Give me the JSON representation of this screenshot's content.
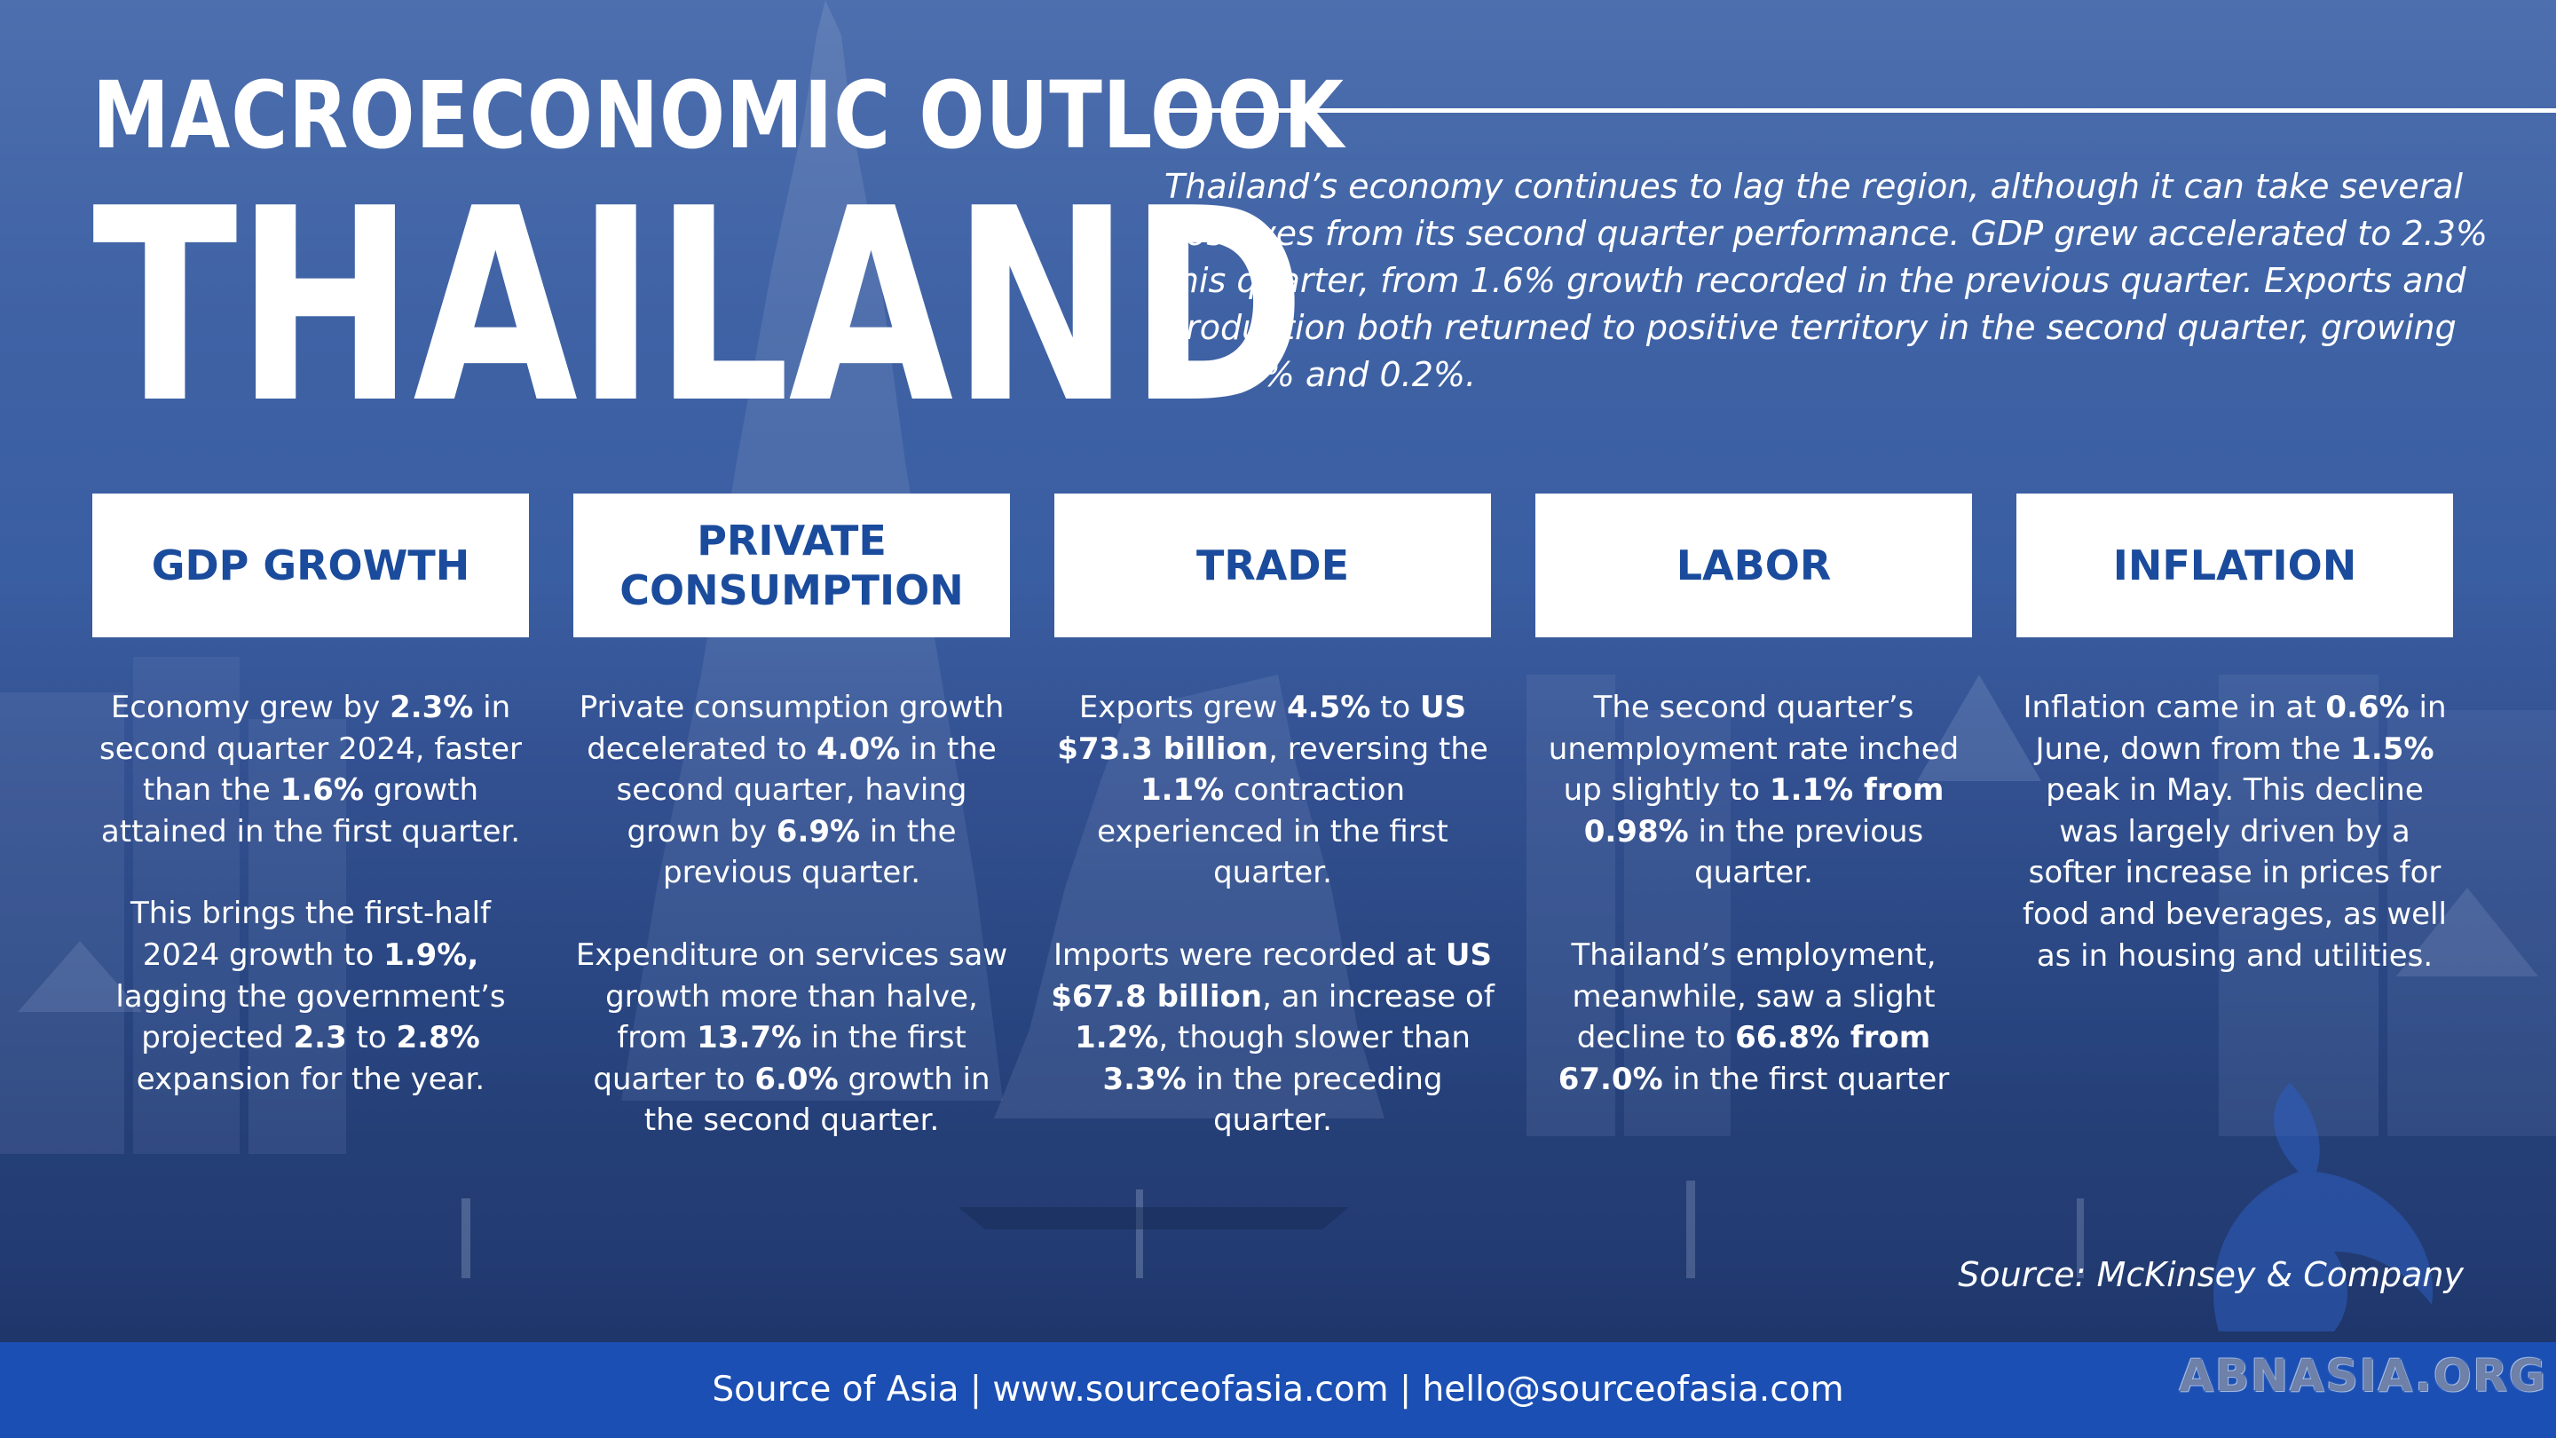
{
  "header": {
    "title_line1": "MACROECONOMIC OUTLOOK",
    "title_line2": "THAILAND",
    "intro": "Thailand’s economy continues to lag the region, although it can take several positives from its second quarter performance. GDP grew accelerated to 2.3% this quarter, from 1.6% growth recorded in the previous quarter. Exports and production both returned to positive territory in the second quarter, growing at 4.5% and 0.2%."
  },
  "categories": [
    {
      "label": "GDP GROWTH",
      "paragraphs": [
        [
          {
            "t": "Economy grew by "
          },
          {
            "t": "2.3%",
            "b": true
          },
          {
            "t": " in second quarter 2024, faster than the "
          },
          {
            "t": "1.6%",
            "b": true
          },
          {
            "t": " growth attained in the first quarter."
          }
        ],
        [
          {
            "t": "This brings the first-half 2024 growth to "
          },
          {
            "t": "1.9%,",
            "b": true
          },
          {
            "t": " lagging the government’s projected "
          },
          {
            "t": "2.3",
            "b": true
          },
          {
            "t": " to "
          },
          {
            "t": "2.8%",
            "b": true
          },
          {
            "t": " expansion for the year."
          }
        ]
      ]
    },
    {
      "label": "PRIVATE CONSUMPTION",
      "paragraphs": [
        [
          {
            "t": "Private consumption growth decelerated to "
          },
          {
            "t": "4.0%",
            "b": true
          },
          {
            "t": " in the second quarter, having grown by "
          },
          {
            "t": "6.9%",
            "b": true
          },
          {
            "t": " in the previous quarter."
          }
        ],
        [
          {
            "t": "Expenditure on services saw growth more than halve, from "
          },
          {
            "t": "13.7%",
            "b": true
          },
          {
            "t": " in the first quarter to "
          },
          {
            "t": "6.0%",
            "b": true
          },
          {
            "t": " growth in the second quarter."
          }
        ]
      ]
    },
    {
      "label": "TRADE",
      "paragraphs": [
        [
          {
            "t": "Exports grew "
          },
          {
            "t": "4.5%",
            "b": true
          },
          {
            "t": " to "
          },
          {
            "t": "US $73.3 billion",
            "b": true
          },
          {
            "t": ", reversing the "
          },
          {
            "t": "1.1%",
            "b": true
          },
          {
            "t": " contraction experienced in the first quarter."
          }
        ],
        [
          {
            "t": "Imports were recorded at "
          },
          {
            "t": "US $67.8 billion",
            "b": true
          },
          {
            "t": ", an increase of "
          },
          {
            "t": "1.2%",
            "b": true
          },
          {
            "t": ", though slower than "
          },
          {
            "t": "3.3%",
            "b": true
          },
          {
            "t": " in the preceding quarter."
          }
        ]
      ]
    },
    {
      "label": "LABOR",
      "paragraphs": [
        [
          {
            "t": "The second quarter’s unemployment rate inched up slightly to "
          },
          {
            "t": "1.1% from 0.98%",
            "b": true
          },
          {
            "t": " in the previous quarter."
          }
        ],
        [
          {
            "t": "Thailand’s employment, meanwhile, saw a slight decline to "
          },
          {
            "t": "66.8% from 67.0%",
            "b": true
          },
          {
            "t": " in the first quarter"
          }
        ]
      ]
    },
    {
      "label": "INFLATION",
      "paragraphs": [
        [
          {
            "t": "Inflation came in at "
          },
          {
            "t": "0.6%",
            "b": true
          },
          {
            "t": " in June, down from the "
          },
          {
            "t": "1.5%",
            "b": true
          },
          {
            "t": " peak in May. This decline was largely driven by a softer increase in prices for food and beverages, as well as in housing and utilities."
          }
        ]
      ]
    }
  ],
  "source_note": "Source: McKinsey & Company",
  "footer": {
    "text": "Source of Asia | www.sourceofasia.com | hello@sourceofasia.com"
  },
  "watermark": "ABNASIA.ORG",
  "colors": {
    "card_text": "#1a4b9c",
    "footer_bar": "#1b4fb4",
    "background_top": "#4d6fae",
    "background_bottom": "#1e3568"
  }
}
